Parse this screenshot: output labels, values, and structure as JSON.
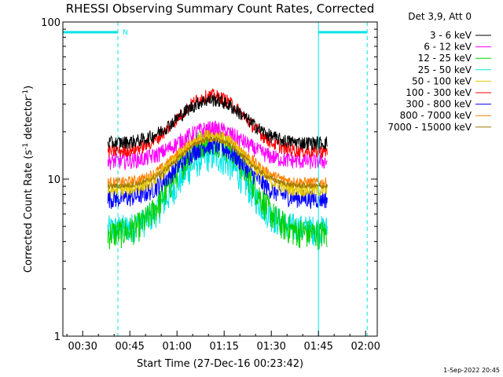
{
  "chart_data": {
    "type": "line",
    "title": "RHESSI Observing Summary Count Rates, Corrected",
    "xlabel": "Start Time (27-Dec-16 00:23:42)",
    "ylabel": "Corrected Count Rate (s",
    "ylabel_sup": "-1",
    "ylabel_rest": " detector",
    "ylabel_sup2": "-1",
    "ylabel_end": ")",
    "yscale": "log",
    "ylim": [
      1,
      100
    ],
    "xlim_minutes": [
      23.7,
      123.7
    ],
    "x_ticks": [
      {
        "label": "00:30",
        "minutes": 30
      },
      {
        "label": "00:45",
        "minutes": 45
      },
      {
        "label": "01:00",
        "minutes": 60
      },
      {
        "label": "01:15",
        "minutes": 75
      },
      {
        "label": "01:30",
        "minutes": 90
      },
      {
        "label": "01:45",
        "minutes": 105
      },
      {
        "label": "02:00",
        "minutes": 120
      }
    ],
    "y_ticks": [
      {
        "label": "1",
        "value": 1
      },
      {
        "label": "10",
        "value": 10
      },
      {
        "label": "100",
        "value": 100
      }
    ],
    "legend_title": "Det 3,9, Att 0",
    "legend_placement": "outside-right",
    "timestamp": "1-Sep-2022 20:45",
    "night_marker": "N",
    "data_start_minutes": 38.0,
    "data_end_minutes": 107.8,
    "peak_minutes": 71.0,
    "series": [
      {
        "name": "3 - 6 keV",
        "color": "#000000",
        "base": 17.0,
        "peak": 32.0,
        "noise": 0.1
      },
      {
        "name": "6 - 12 keV",
        "color": "#ff00ff",
        "base": 13.0,
        "peak": 21.0,
        "noise": 0.12
      },
      {
        "name": "12 - 25 keV",
        "color": "#00d000",
        "base": 4.5,
        "peak": 18.0,
        "noise": 0.22
      },
      {
        "name": "25 - 50 keV",
        "color": "#00e5e5",
        "base": 4.8,
        "peak": 14.0,
        "noise": 0.22
      },
      {
        "name": "50 - 100 keV",
        "color": "#e5c800",
        "base": 8.5,
        "peak": 19.0,
        "noise": 0.1
      },
      {
        "name": "100 - 300 keV",
        "color": "#ff0000",
        "base": 15.0,
        "peak": 34.0,
        "noise": 0.1
      },
      {
        "name": "300 - 800 keV",
        "color": "#0000ff",
        "base": 7.5,
        "peak": 16.5,
        "noise": 0.14
      },
      {
        "name": "800 - 7000 keV",
        "color": "#ff8000",
        "base": 9.5,
        "peak": 19.5,
        "noise": 0.08
      },
      {
        "name": "7000 - 15000 keV",
        "color": "#a07800",
        "base": 9.0,
        "peak": 18.0,
        "noise": 0.04
      }
    ],
    "night_intervals_minutes": [
      [
        23.7,
        41.2
      ],
      [
        105.0,
        120.5
      ]
    ],
    "vertical_markers": [
      {
        "minutes": 23.7,
        "style": "solid"
      },
      {
        "minutes": 41.2,
        "style": "dashed"
      },
      {
        "minutes": 105.0,
        "style": "solid"
      },
      {
        "minutes": 120.5,
        "style": "dashed"
      }
    ],
    "grid": false,
    "marker_color": "#00e5e5"
  }
}
